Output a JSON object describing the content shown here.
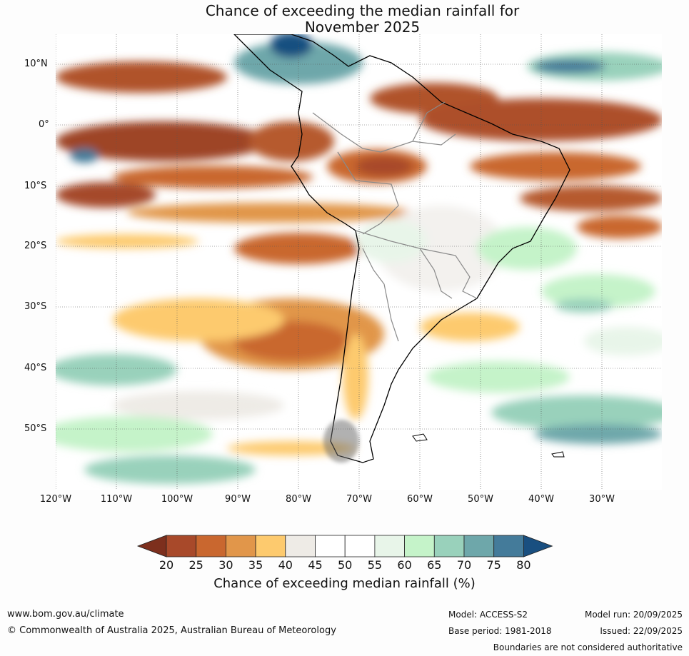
{
  "title_line1": "Chance of exceeding the median rainfall for",
  "title_line2": "November 2025",
  "lat_labels": [
    "10°N",
    "0°",
    "10°S",
    "20°S",
    "30°S",
    "40°S",
    "50°S"
  ],
  "lon_labels": [
    "120°W",
    "110°W",
    "100°W",
    "90°W",
    "80°W",
    "70°W",
    "60°W",
    "50°W",
    "40°W",
    "30°W"
  ],
  "colorbar": {
    "ticks": [
      "20",
      "25",
      "30",
      "35",
      "40",
      "45",
      "50",
      "55",
      "60",
      "65",
      "70",
      "75",
      "80"
    ],
    "colors": [
      "#7d2f1d",
      "#a8492a",
      "#c9672f",
      "#e1964a",
      "#fdca6e",
      "#eeebe6",
      "#ffffff",
      "#ffffff",
      "#e8f5e9",
      "#c5f3c9",
      "#99d1bb",
      "#6ea7aa",
      "#447b9a",
      "#194f80"
    ],
    "label": "Chance of exceeding median rainfall (%)"
  },
  "footer": {
    "url": "www.bom.gov.au/climate",
    "copyright": "© Commonwealth of Australia 2025, Australian Bureau of Meteorology",
    "model": "Model: ACCESS-S2",
    "base_period": "Base period: 1981-2018",
    "model_run": "Model run: 20/09/2025",
    "issued": "Issued: 22/09/2025",
    "disclaimer": "Boundaries are not considered authoritative"
  }
}
